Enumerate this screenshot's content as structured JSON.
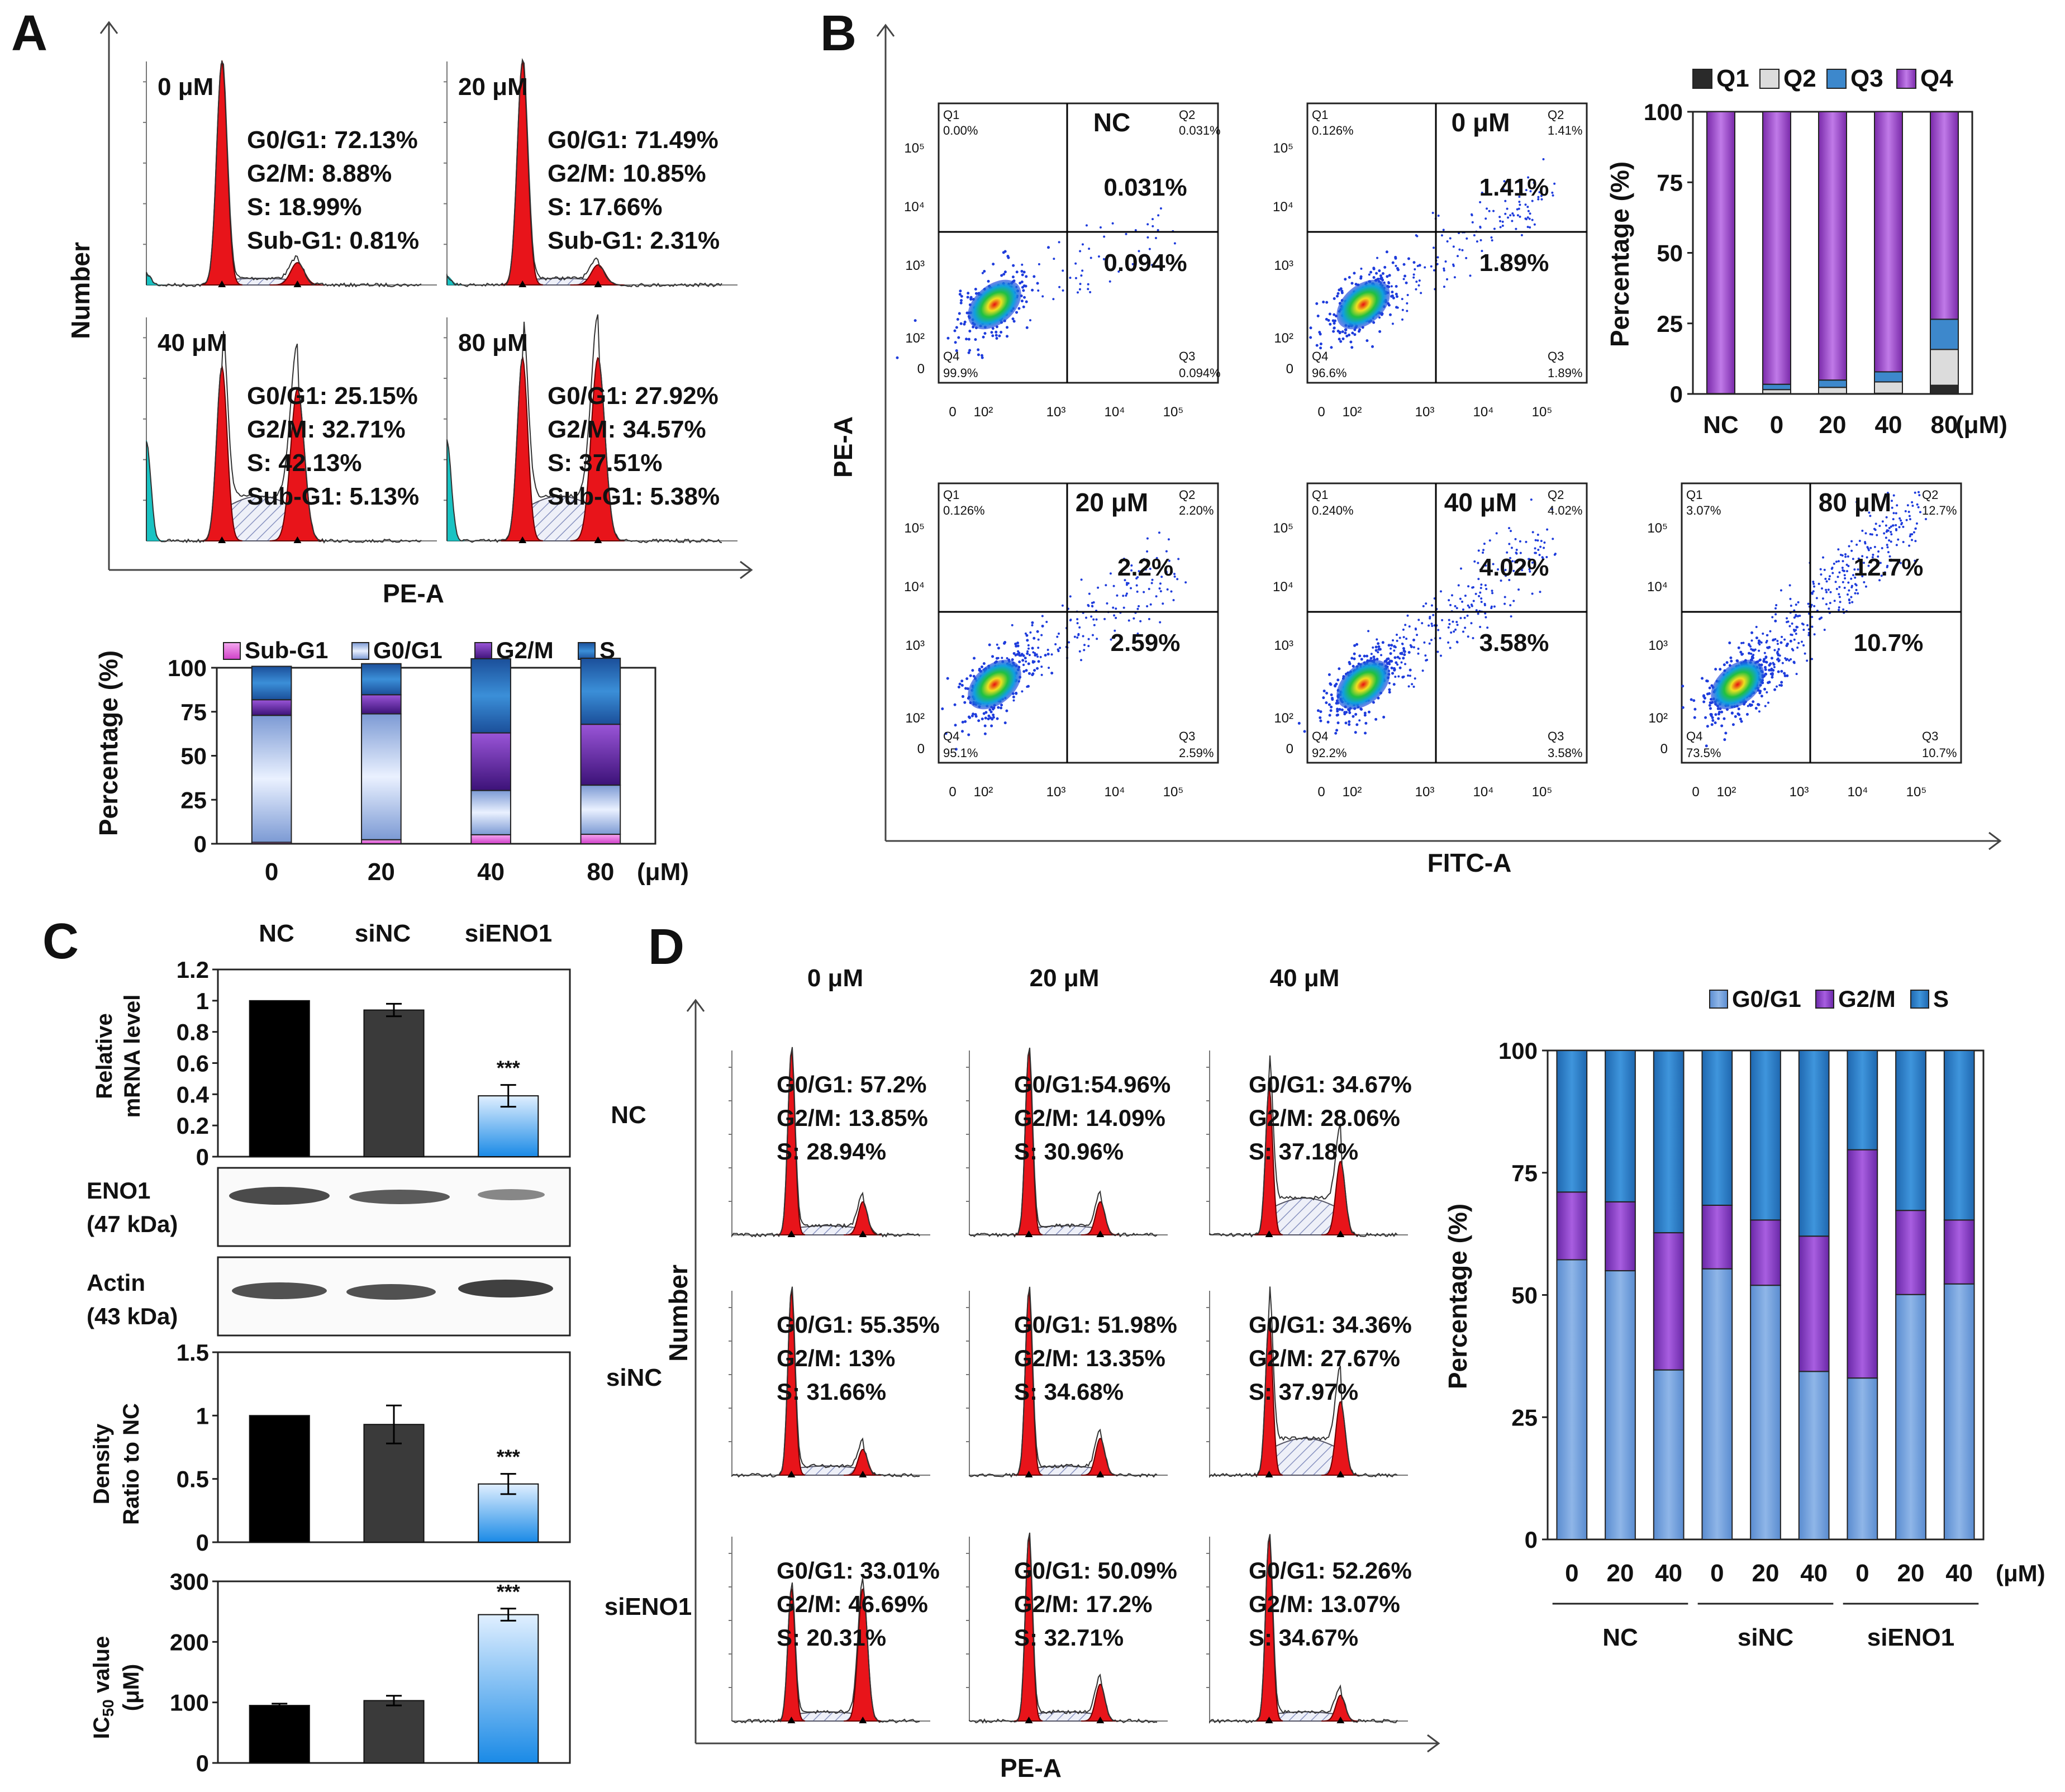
{
  "panel_letters": {
    "A": "A",
    "B": "B",
    "C": "C",
    "D": "D"
  },
  "colors": {
    "peak_red": "#e8141a",
    "hist_line": "#333333",
    "hatch": "#9aa6c8",
    "cyan": "#19c3c3",
    "subg1": "#e05adc",
    "g0g1_light": "#c9d8f0",
    "g0g1_dark": "#7c9ad4",
    "g2m_light": "#b070e0",
    "g2m_dark": "#4d1a8c",
    "s_light": "#3b8fd8",
    "s_dark": "#1b4f9a",
    "q1": "#2a2a2a",
    "q2": "#dcdcdc",
    "q3": "#3d88cc",
    "q4": "#9a48c8",
    "d_g0g1": "#6f9fdc",
    "d_g2m": "#8a3fc0",
    "d_s": "#2d7cc4",
    "bar_black": "#000000",
    "bar_dark": "#3a3a3a",
    "bar_blue_top": "#e0efff",
    "bar_blue_bot": "#1a8ae6",
    "scatter_blue": "#1e3cdc"
  },
  "panelA": {
    "y_axis_label": "Number",
    "x_axis_label": "PE-A",
    "histograms": [
      {
        "title": "0 μM",
        "lines": [
          "G0/G1: 72.13%",
          "G2/M: 8.88%",
          "S: 18.99%",
          "Sub-G1: 0.81%"
        ]
      },
      {
        "title": "20 μM",
        "lines": [
          "G0/G1: 71.49%",
          "G2/M: 10.85%",
          "S: 17.66%",
          "Sub-G1: 2.31%"
        ]
      },
      {
        "title": "40 μM",
        "lines": [
          "G0/G1: 25.15%",
          "G2/M: 32.71%",
          "S: 42.13%",
          "Sub-G1: 5.13%"
        ]
      },
      {
        "title": "80 μM",
        "lines": [
          "G0/G1: 27.92%",
          "G2/M: 34.57%",
          "S: 37.51%",
          "Sub-G1: 5.38%"
        ]
      }
    ]
  },
  "panelB": {
    "y_axis_label": "PE-A",
    "x_axis_label": "FITC-A",
    "axis_ticks": [
      "0",
      "10²",
      "10³",
      "10⁴",
      "10⁵"
    ],
    "plots": [
      {
        "title": "NC",
        "q1": "0.00%",
        "q2": "0.031%",
        "q3": "0.094%",
        "q4": "99.9%",
        "upper": "0.031%",
        "lower": "0.094%"
      },
      {
        "title": "0 μM",
        "q1": "0.126%",
        "q2": "1.41%",
        "q3": "1.89%",
        "q4": "96.6%",
        "upper": "1.41%",
        "lower": "1.89%"
      },
      {
        "title": "20 μM",
        "q1": "0.126%",
        "q2": "2.20%",
        "q3": "2.59%",
        "q4": "95.1%",
        "upper": "2.2%",
        "lower": "2.59%"
      },
      {
        "title": "40 μM",
        "q1": "0.240%",
        "q2": "4.02%",
        "q3": "3.58%",
        "q4": "92.2%",
        "upper": "4.02%",
        "lower": "3.58%"
      },
      {
        "title": "80 μM",
        "q1": "3.07%",
        "q2": "12.7%",
        "q3": "10.7%",
        "q4": "73.5%",
        "upper": "12.7%",
        "lower": "10.7%"
      }
    ],
    "quadrant_labels": {
      "q1": "Q1",
      "q2": "Q2",
      "q3": "Q3",
      "q4": "Q4"
    }
  },
  "panelC": {
    "columns": [
      "NC",
      "siNC",
      "siENO1"
    ],
    "mrna": {
      "ylabel": "Relative mRNA level",
      "ticks": [
        "0",
        "0.2",
        "0.4",
        "0.6",
        "0.8",
        "1",
        "1.2"
      ]
    },
    "blot_eno1": "ENO1 (47 kDa)",
    "blot_actin": "Actin (43 kDa)",
    "density": {
      "ylabel": "Density Ratio to NC",
      "ticks": [
        "0",
        "0.5",
        "1",
        "1.5"
      ]
    },
    "ic50": {
      "ylabel": "IC50 value (μM)",
      "ticks": [
        "0",
        "100",
        "200",
        "300"
      ]
    },
    "significance": "***"
  },
  "panelD": {
    "column_titles": [
      "0 μM",
      "20 μM",
      "40 μM"
    ],
    "row_labels": [
      "NC",
      "siNC",
      "siENO1"
    ],
    "y_axis_label": "Number",
    "x_axis_label": "PE-A",
    "grid": [
      [
        [
          "G0/G1: 57.2%",
          "G2/M: 13.85%",
          "S: 28.94%"
        ],
        [
          "G0/G1:54.96%",
          "G2/M: 14.09%",
          "S: 30.96%"
        ],
        [
          "G0/G1: 34.67%",
          "G2/M: 28.06%",
          "S: 37.18%"
        ]
      ],
      [
        [
          "G0/G1: 55.35%",
          "G2/M: 13%",
          "S: 31.66%"
        ],
        [
          "G0/G1: 51.98%",
          "G2/M: 13.35%",
          "S: 34.68%"
        ],
        [
          "G0/G1: 34.36%",
          "G2/M: 27.67%",
          "S: 37.97%"
        ]
      ],
      [
        [
          "G0/G1: 33.01%",
          "G2/M: 46.69%",
          "S: 20.31%"
        ],
        [
          "G0/G1: 50.09%",
          "G2/M: 17.2%",
          "S: 32.71%"
        ],
        [
          "G0/G1: 52.26%",
          "G2/M: 13.07%",
          "S: 34.67%"
        ]
      ]
    ]
  },
  "chart_data": [
    {
      "id": "A_bar",
      "type": "bar",
      "stacked": true,
      "title": "",
      "xlabel": "",
      "ylabel": "Percentage (%)",
      "ylim": [
        0,
        100
      ],
      "yticks": [
        "0",
        "25",
        "50",
        "75",
        "100"
      ],
      "categories": [
        "0",
        "20",
        "40",
        "80"
      ],
      "unit_label": "(μM)",
      "series": [
        {
          "name": "Sub-G1",
          "values": [
            0.81,
            2.31,
            5.13,
            5.38
          ]
        },
        {
          "name": "G0/G1",
          "values": [
            72.13,
            71.49,
            25.15,
            27.92
          ]
        },
        {
          "name": "G2/M",
          "values": [
            8.88,
            10.85,
            32.71,
            34.57
          ]
        },
        {
          "name": "S",
          "values": [
            18.99,
            17.66,
            42.13,
            37.51
          ]
        }
      ]
    },
    {
      "id": "B_bar",
      "type": "bar",
      "stacked": true,
      "title": "",
      "xlabel": "",
      "ylabel": "Percentage (%)",
      "ylim": [
        0,
        100
      ],
      "yticks": [
        "0",
        "25",
        "50",
        "75",
        "100"
      ],
      "categories": [
        "NC",
        "0",
        "20",
        "40",
        "80"
      ],
      "unit_label": "(μM)",
      "series": [
        {
          "name": "Q1",
          "values": [
            0.0,
            0.126,
            0.126,
            0.24,
            3.07
          ]
        },
        {
          "name": "Q2",
          "values": [
            0.031,
            1.41,
            2.2,
            4.02,
            12.7
          ]
        },
        {
          "name": "Q3",
          "values": [
            0.094,
            1.89,
            2.59,
            3.58,
            10.7
          ]
        },
        {
          "name": "Q4",
          "values": [
            99.9,
            96.6,
            95.1,
            92.2,
            73.5
          ]
        }
      ]
    },
    {
      "id": "C_mrna",
      "type": "bar",
      "title": "",
      "xlabel": "",
      "ylabel": "Relative mRNA level",
      "categories": [
        "NC",
        "siNC",
        "siENO1"
      ],
      "values": [
        1.0,
        0.94,
        0.39
      ],
      "errors": [
        0.0,
        0.04,
        0.07
      ],
      "ylim": [
        0,
        1.2
      ]
    },
    {
      "id": "C_density",
      "type": "bar",
      "title": "",
      "xlabel": "",
      "ylabel": "Density Ratio to NC",
      "categories": [
        "NC",
        "siNC",
        "siENO1"
      ],
      "values": [
        1.0,
        0.93,
        0.46
      ],
      "errors": [
        0.0,
        0.15,
        0.08
      ],
      "ylim": [
        0,
        1.5
      ]
    },
    {
      "id": "C_ic50",
      "type": "bar",
      "title": "",
      "xlabel": "",
      "ylabel": "IC50 value (μM)",
      "categories": [
        "NC",
        "siNC",
        "siENO1"
      ],
      "values": [
        95,
        103,
        245
      ],
      "errors": [
        3,
        8,
        10
      ],
      "ylim": [
        0,
        300
      ]
    },
    {
      "id": "D_bar",
      "type": "bar",
      "stacked": true,
      "title": "",
      "xlabel": "",
      "ylabel": "Percentage (%)",
      "ylim": [
        0,
        100
      ],
      "yticks": [
        "0",
        "25",
        "50",
        "75",
        "100"
      ],
      "categories": [
        "0",
        "20",
        "40",
        "0",
        "20",
        "40",
        "0",
        "20",
        "40"
      ],
      "groups": [
        "NC",
        "siNC",
        "siENO1"
      ],
      "unit_label": "(μM)",
      "series": [
        {
          "name": "G0/G1",
          "values": [
            57.2,
            54.96,
            34.67,
            55.35,
            51.98,
            34.36,
            33.01,
            50.09,
            52.26
          ]
        },
        {
          "name": "G2/M",
          "values": [
            13.85,
            14.09,
            28.06,
            13,
            13.35,
            27.67,
            46.69,
            17.2,
            13.07
          ]
        },
        {
          "name": "S",
          "values": [
            28.94,
            30.96,
            37.18,
            31.66,
            34.68,
            37.97,
            20.31,
            32.71,
            34.67
          ]
        }
      ]
    }
  ]
}
